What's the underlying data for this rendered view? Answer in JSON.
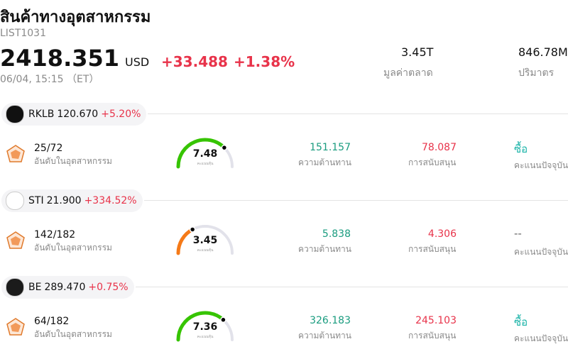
{
  "header": {
    "title": "สินค้าทางอุตสาหกรรม",
    "code": "LIST1031",
    "price": "2418.351",
    "currency": "USD",
    "change": "+33.488",
    "change_pct": "+1.38%",
    "time": "06/04, 15:15 （ET）"
  },
  "stats": [
    {
      "value": "3.45T",
      "label": "มูลค่าตลาด"
    },
    {
      "value": "846.78M",
      "label": "ปริมาตร"
    }
  ],
  "stocks": [
    {
      "ticker": "RKLB",
      "price": "120.670",
      "change": "+5.20%",
      "rank": "25/72",
      "rank_label": "อันดับในอุตสาหกรรม",
      "score": "7.48",
      "score_label": "คะแนนหุ้น",
      "resistance": "151.157",
      "resistance_label": "ความต้านทาน",
      "support": "78.087",
      "support_label": "การสนับสนุน",
      "signal": "ซื้อ",
      "signal_label": "คะแนนปัจจุบัน"
    },
    {
      "ticker": "STI",
      "price": "21.900",
      "change": "+334.52%",
      "rank": "142/182",
      "rank_label": "อันดับในอุตสาหกรรม",
      "score": "3.45",
      "score_label": "คะแนนหุ้น",
      "resistance": "5.838",
      "resistance_label": "ความต้านทาน",
      "support": "4.306",
      "support_label": "การสนับสนุน",
      "signal": "--",
      "signal_label": "คะแนนปัจจุบัน"
    },
    {
      "ticker": "BE",
      "price": "289.470",
      "change": "+0.75%",
      "rank": "64/182",
      "rank_label": "อันดับในอุตสาหกรรม",
      "score": "7.36",
      "score_label": "คะแนนหุ้น",
      "resistance": "326.183",
      "resistance_label": "ความต้านทาน",
      "support": "245.103",
      "support_label": "การสนับสนุน",
      "signal": "ซื้อ",
      "signal_label": "คะแนนปัจจุบัน"
    }
  ]
}
